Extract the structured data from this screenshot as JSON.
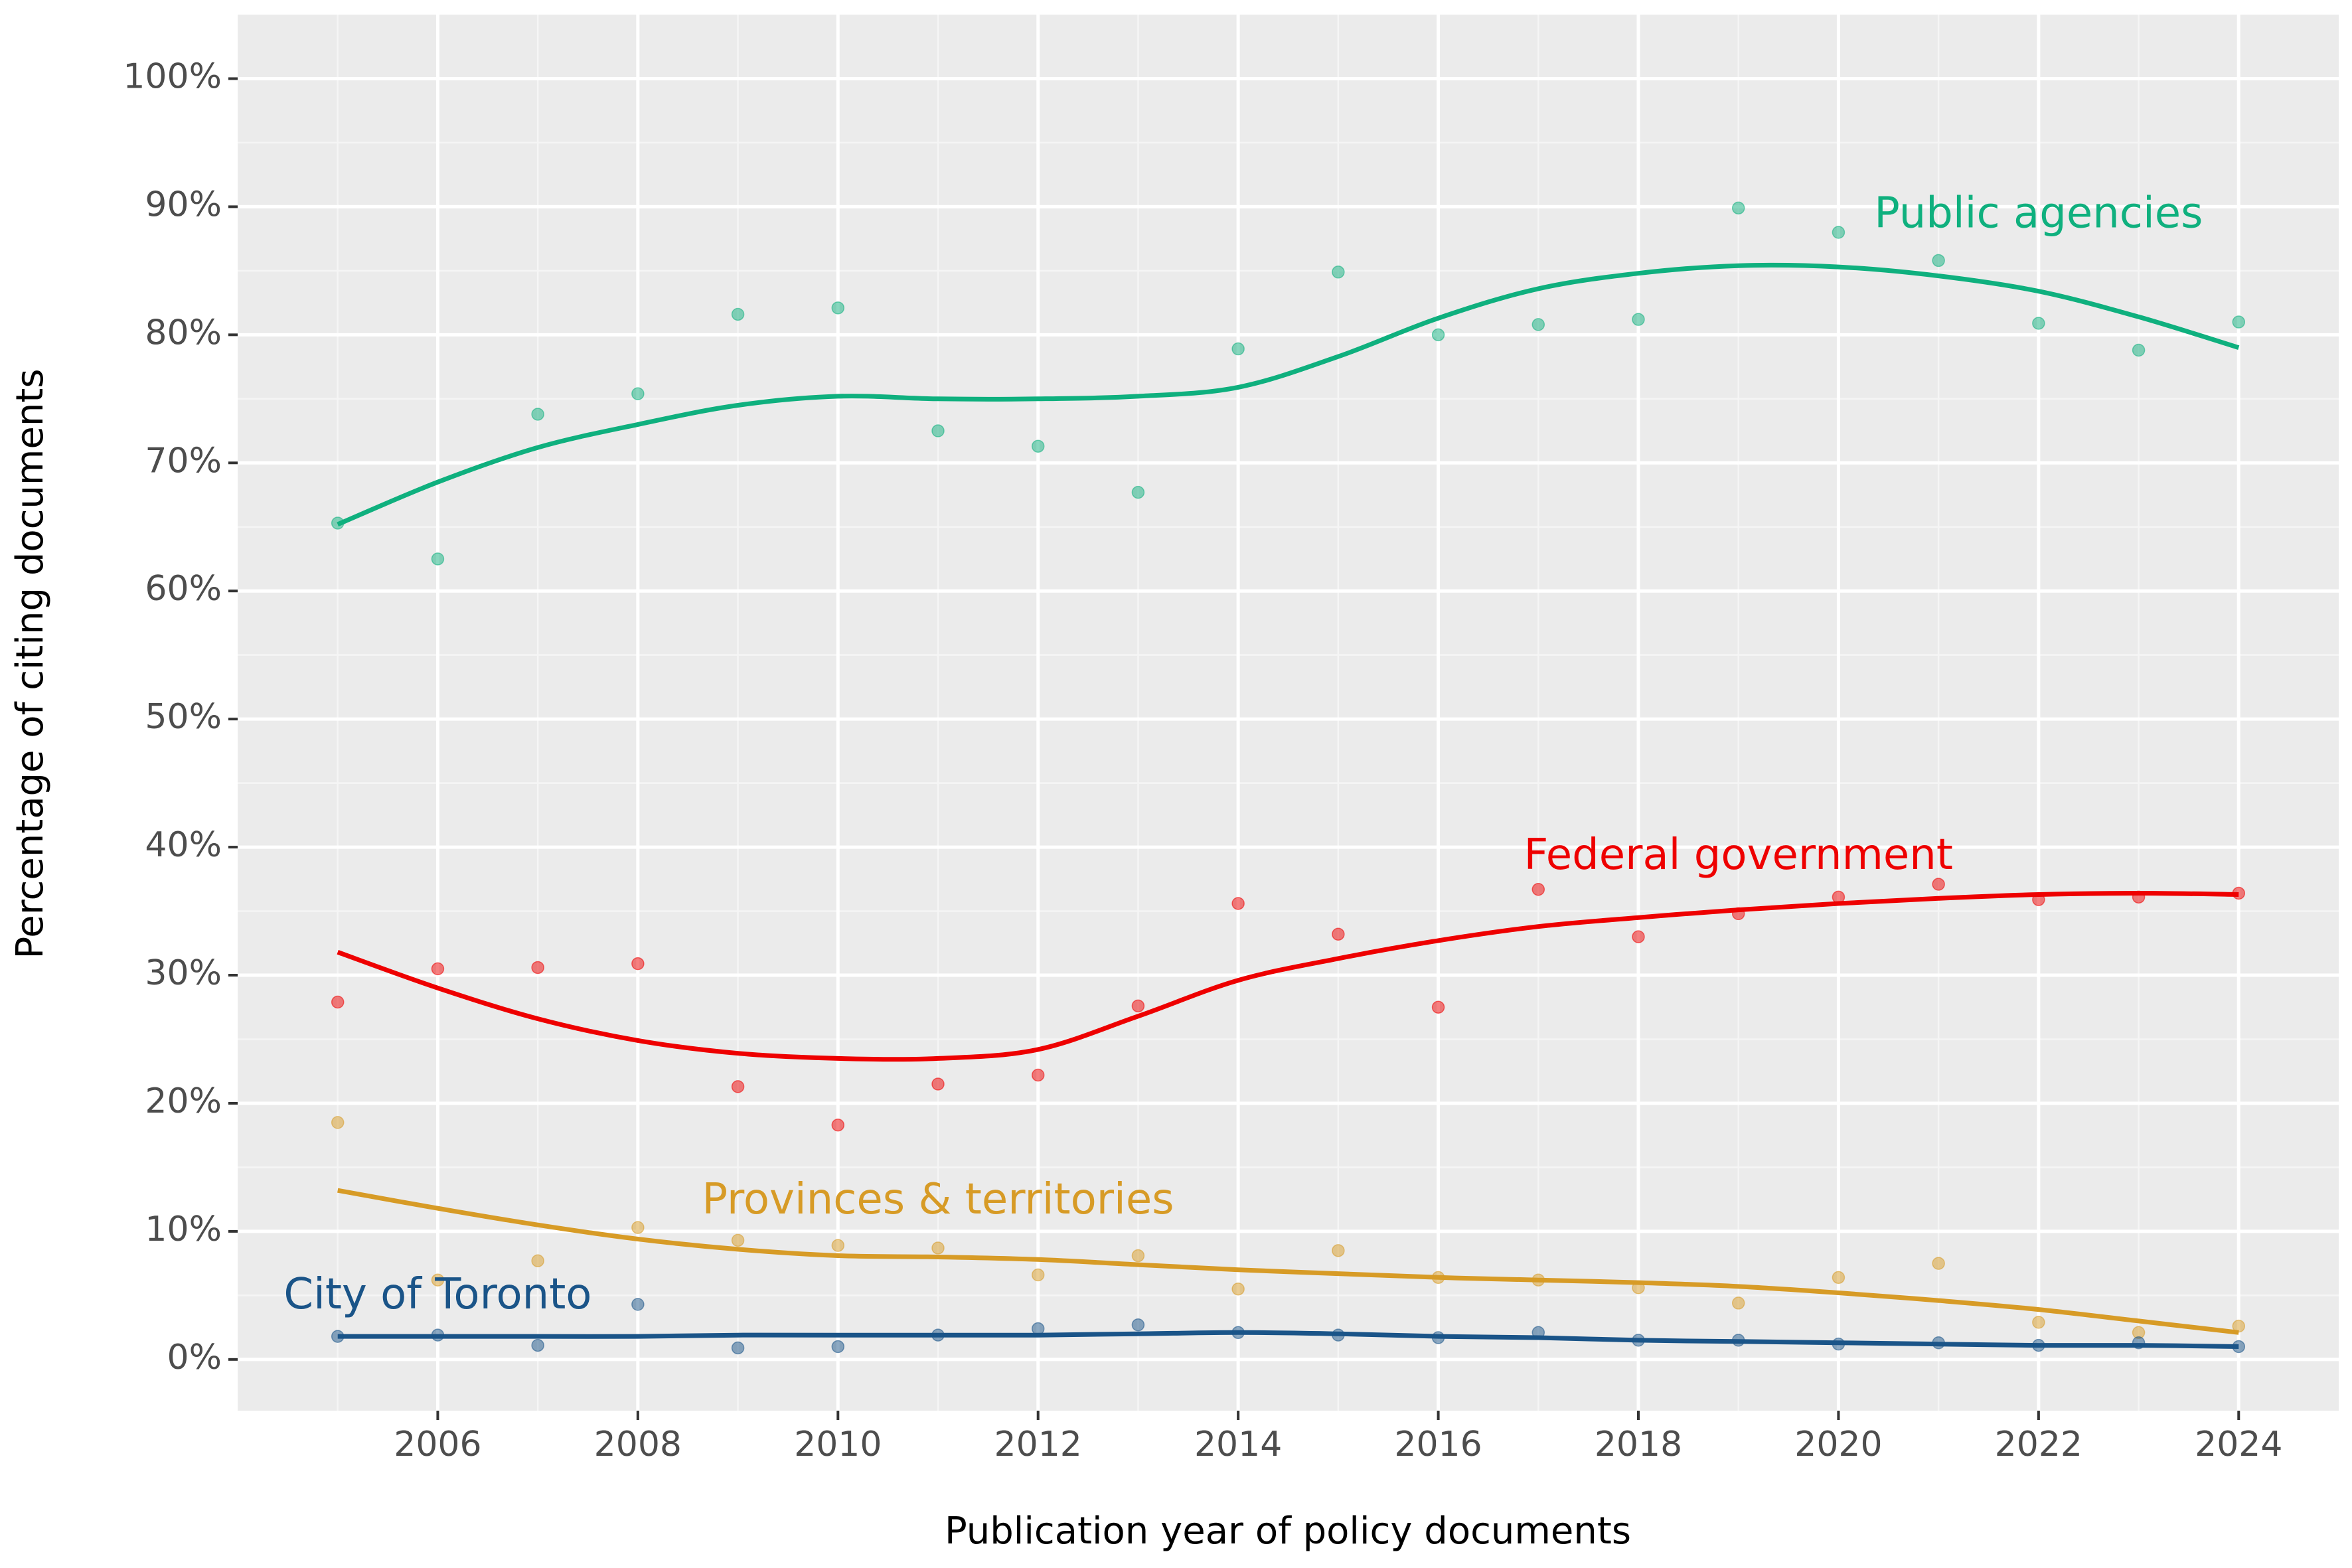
{
  "chart_data": {
    "type": "scatter",
    "xlabel": "Publication year of policy documents",
    "ylabel": "Percentage of citing documents",
    "xlim": [
      2004,
      2025
    ],
    "ylim": [
      -4,
      105
    ],
    "x_ticks": [
      2006,
      2008,
      2010,
      2012,
      2014,
      2016,
      2018,
      2020,
      2022,
      2024
    ],
    "y_ticks": [
      0,
      10,
      20,
      30,
      40,
      50,
      60,
      70,
      80,
      90,
      100
    ],
    "y_tick_labels": [
      "0%",
      "10%",
      "20%",
      "30%",
      "40%",
      "50%",
      "60%",
      "70%",
      "80%",
      "90%",
      "100%"
    ],
    "grid": true,
    "legend": "none",
    "panel_background": "#ebebeb",
    "years": [
      2005,
      2006,
      2007,
      2008,
      2009,
      2010,
      2011,
      2012,
      2013,
      2014,
      2015,
      2016,
      2017,
      2018,
      2019,
      2020,
      2021,
      2022,
      2023,
      2024
    ],
    "series": [
      {
        "name": "Public agencies",
        "color": "#0fb07e",
        "label_anchor": [
          2022.0,
          89.3
        ],
        "points": [
          65.3,
          62.5,
          73.8,
          75.4,
          81.6,
          82.1,
          72.5,
          71.3,
          67.7,
          78.9,
          84.9,
          80.0,
          80.8,
          81.2,
          89.9,
          88.0,
          85.8,
          80.9,
          78.8,
          81.0
        ],
        "trend": [
          65.2,
          68.5,
          71.2,
          73.0,
          74.5,
          75.2,
          75.0,
          75.0,
          75.2,
          75.9,
          78.3,
          81.3,
          83.6,
          84.8,
          85.4,
          85.3,
          84.6,
          83.4,
          81.4,
          79.0
        ]
      },
      {
        "name": "Federal government",
        "color": "#ee0000",
        "label_anchor": [
          2019.0,
          39.2
        ],
        "points": [
          27.9,
          30.5,
          30.6,
          30.9,
          21.3,
          18.3,
          21.5,
          22.2,
          27.6,
          35.6,
          33.2,
          27.5,
          36.7,
          33.0,
          34.8,
          36.1,
          37.1,
          35.9,
          36.1,
          36.4
        ],
        "trend": [
          31.8,
          29.0,
          26.6,
          24.9,
          23.9,
          23.5,
          23.5,
          24.2,
          26.8,
          29.6,
          31.3,
          32.7,
          33.8,
          34.5,
          35.1,
          35.6,
          36.0,
          36.3,
          36.4,
          36.3
        ]
      },
      {
        "name": "Provinces & territories",
        "color": "#d79b26",
        "label_anchor": [
          2011.0,
          12.3
        ],
        "points": [
          18.5,
          6.2,
          7.7,
          10.3,
          9.3,
          8.9,
          8.7,
          6.6,
          8.1,
          5.5,
          8.5,
          6.4,
          6.2,
          5.6,
          4.4,
          6.4,
          7.5,
          2.9,
          2.1,
          2.6
        ],
        "trend": [
          13.2,
          11.8,
          10.5,
          9.4,
          8.6,
          8.1,
          8.0,
          7.8,
          7.4,
          7.0,
          6.7,
          6.4,
          6.2,
          6.0,
          5.7,
          5.2,
          4.6,
          3.9,
          3.0,
          2.1
        ]
      },
      {
        "name": "City of Toronto",
        "color": "#1a5488",
        "label_anchor": [
          2006.0,
          4.9
        ],
        "points": [
          1.8,
          1.9,
          1.1,
          4.3,
          0.9,
          1.0,
          1.9,
          2.4,
          2.7,
          2.1,
          1.9,
          1.7,
          2.1,
          1.5,
          1.5,
          1.2,
          1.3,
          1.1,
          1.3,
          1.0
        ],
        "trend": [
          1.8,
          1.8,
          1.8,
          1.8,
          1.9,
          1.9,
          1.9,
          1.9,
          2.0,
          2.1,
          2.0,
          1.8,
          1.7,
          1.5,
          1.4,
          1.3,
          1.2,
          1.1,
          1.1,
          1.0
        ]
      }
    ]
  }
}
